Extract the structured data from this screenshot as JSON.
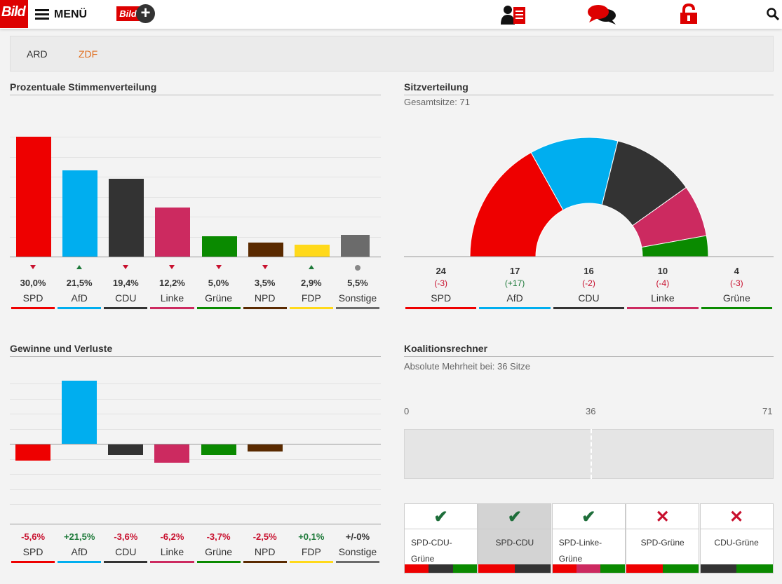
{
  "header": {
    "logo_text": "Bild",
    "menu_label": "MENÜ",
    "bildplus_text": "Bild",
    "icons": [
      "account-icon",
      "comments-icon",
      "lock-icon",
      "search-icon"
    ]
  },
  "tabs": [
    {
      "label": "ARD",
      "active": false,
      "color": "#333333"
    },
    {
      "label": "ZDF",
      "active": true,
      "color": "#e06c1c"
    }
  ],
  "colors": {
    "SPD": "#ee0000",
    "AfD": "#00aeef",
    "CDU": "#333333",
    "Linke": "#cc2a60",
    "Grüne": "#0a8a00",
    "NPD": "#5a2a00",
    "FDP": "#ffd91a",
    "Sonstige": "#6b6b6b",
    "down": "#c8102e",
    "up": "#1e7a3a",
    "neutral": "#888888"
  },
  "vote_share": {
    "title": "Prozentuale Stimmenverteilung",
    "chart_data": {
      "type": "bar",
      "categories": [
        "SPD",
        "AfD",
        "CDU",
        "Linke",
        "Grüne",
        "NPD",
        "FDP",
        "Sonstige"
      ],
      "values": [
        30.0,
        21.5,
        19.4,
        12.2,
        5.0,
        3.5,
        2.9,
        5.5
      ],
      "value_labels": [
        "30,0%",
        "21,5%",
        "19,4%",
        "12,2%",
        "5,0%",
        "3,5%",
        "2,9%",
        "5,5%"
      ],
      "trend": [
        "down",
        "up",
        "down",
        "down",
        "down",
        "down",
        "up",
        "neutral"
      ],
      "ylim": [
        0,
        35
      ]
    }
  },
  "seats": {
    "title": "Sitzverteilung",
    "subtitle": "Gesamtsitze: 71",
    "chart_data": {
      "type": "pie",
      "categories": [
        "SPD",
        "AfD",
        "CDU",
        "Linke",
        "Grüne"
      ],
      "values": [
        24,
        17,
        16,
        10,
        4
      ],
      "changes": [
        "(-3)",
        "(+17)",
        "(-2)",
        "(-4)",
        "(-3)"
      ],
      "total": 71
    }
  },
  "gains": {
    "title": "Gewinne und Verluste",
    "chart_data": {
      "type": "bar",
      "categories": [
        "SPD",
        "AfD",
        "CDU",
        "Linke",
        "Grüne",
        "NPD",
        "FDP",
        "Sonstige"
      ],
      "values": [
        -5.6,
        21.5,
        -3.6,
        -6.2,
        -3.7,
        -2.5,
        0.1,
        0
      ],
      "value_labels": [
        "-5,6%",
        "+21,5%",
        "-3,6%",
        "-6,2%",
        "-3,7%",
        "-2,5%",
        "+0,1%",
        "+/-0%"
      ],
      "ylim": [
        -25,
        25
      ]
    }
  },
  "coalition": {
    "title": "Koalitionsrechner",
    "subtitle": "Absolute Mehrheit bei: 36 Sitze",
    "scale": {
      "min": "0",
      "majority": "36",
      "max": "71"
    },
    "options": [
      {
        "label_lines": [
          "SPD-CDU-",
          "Grüne"
        ],
        "ok": true,
        "selected": false,
        "parties": [
          "SPD",
          "CDU",
          "Grüne"
        ]
      },
      {
        "label_lines": [
          "SPD-CDU"
        ],
        "ok": true,
        "selected": true,
        "parties": [
          "SPD",
          "CDU"
        ]
      },
      {
        "label_lines": [
          "SPD-Linke-",
          "Grüne"
        ],
        "ok": true,
        "selected": false,
        "parties": [
          "SPD",
          "Linke",
          "Grüne"
        ]
      },
      {
        "label_lines": [
          "SPD-Grüne"
        ],
        "ok": false,
        "selected": false,
        "parties": [
          "SPD",
          "Grüne"
        ]
      },
      {
        "label_lines": [
          "CDU-Grüne"
        ],
        "ok": false,
        "selected": false,
        "parties": [
          "CDU",
          "Grüne"
        ]
      }
    ],
    "mark_ok": "✔",
    "mark_no": "✕"
  }
}
